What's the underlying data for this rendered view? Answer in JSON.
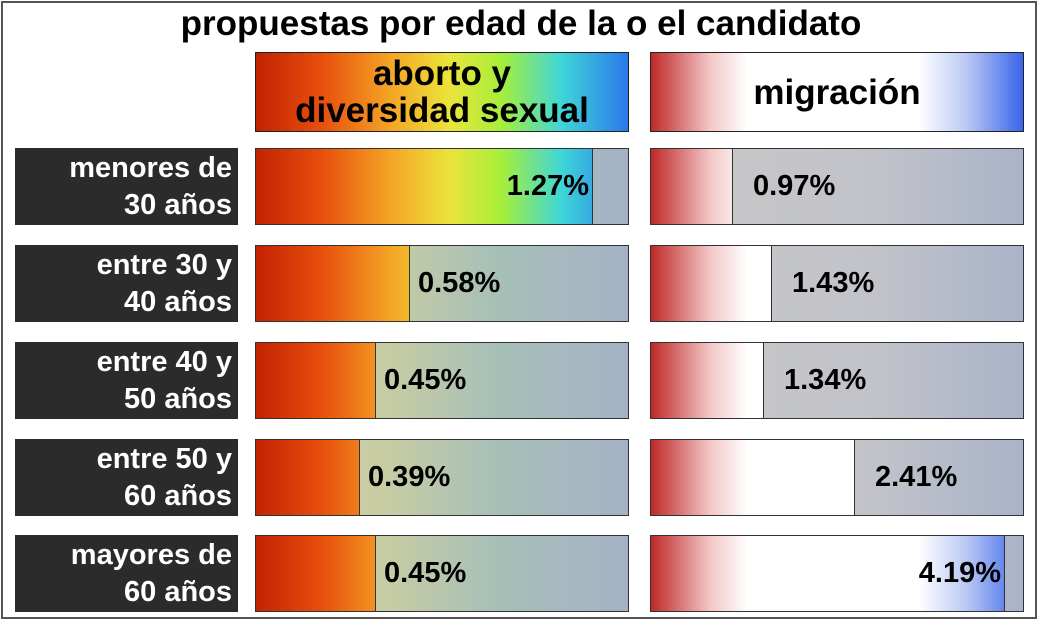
{
  "chart_data": {
    "type": "bar",
    "title": "propuestas por edad de la o el candidato",
    "categories": [
      "menores de\n30 años",
      "entre 30 y\n40 años",
      "entre 40 y\n50 años",
      "entre 50 y\n60 años",
      "mayores de\n60 años"
    ],
    "series": [
      {
        "name": "aborto y\ndiversidad sexual",
        "values": [
          1.27,
          0.58,
          0.45,
          0.39,
          0.45
        ],
        "labels": [
          "1.27%",
          "0.58%",
          "0.45%",
          "0.39%",
          "0.45%"
        ]
      },
      {
        "name": "migración",
        "values": [
          0.97,
          1.43,
          1.34,
          2.41,
          4.19
        ],
        "labels": [
          "0.97%",
          "1.43%",
          "1.34%",
          "2.41%",
          "4.19%"
        ]
      }
    ],
    "xlim": [
      0,
      1.4
    ],
    "xlim_secondary": [
      0,
      4.4
    ],
    "colors": {
      "aborto_scale": [
        "#c32200",
        "#e8500d",
        "#f5a426",
        "#ebe43a",
        "#a6ef3a",
        "#3fd6d8",
        "#2a78ea"
      ],
      "migracion_scale": [
        "#c02828",
        "#ffffff",
        "#3a64ea"
      ],
      "track": "#c8c8c8",
      "label_bg": "#2b2b2b"
    }
  }
}
